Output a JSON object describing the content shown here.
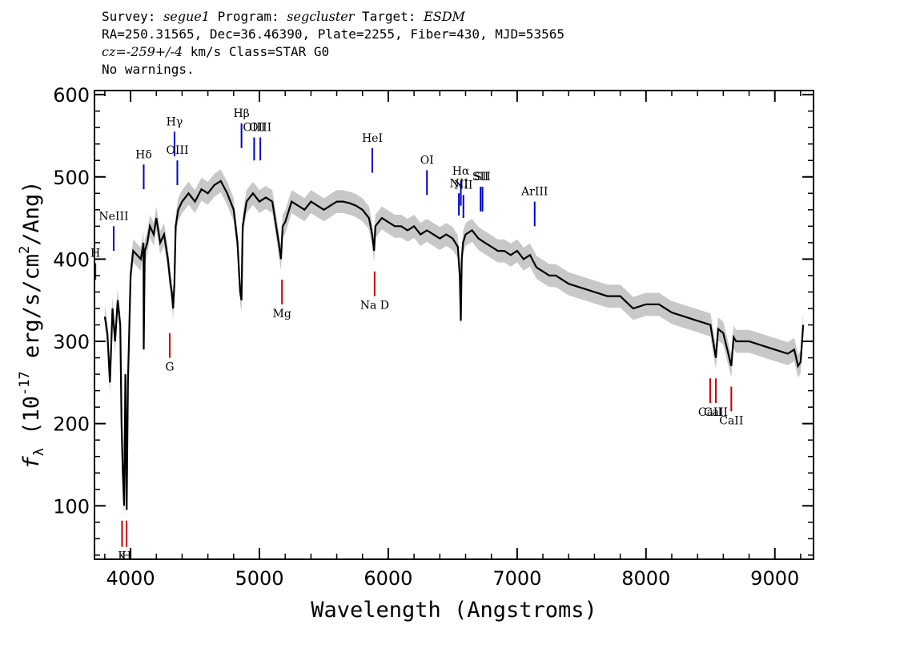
{
  "header": {
    "line1": {
      "survey_label": "Survey:",
      "survey": "segue1",
      "program_label": "Program:",
      "program": "segcluster",
      "target_label": "Target:",
      "target": "ESDM"
    },
    "line2": "RA=250.31565, Dec=36.46390, Plate=2255, Fiber=430, MJD=53565",
    "line3": {
      "cz_label": "cz=",
      "cz": "-259+/-4",
      "rest": " km/s Class=STAR G0"
    },
    "line4": "No warnings."
  },
  "chart_data": {
    "type": "line",
    "xlabel": "Wavelength (Angstroms)",
    "ylabel": "f_λ (10^-17 erg/s/cm^2/Ang)",
    "xlim": [
      3720,
      9300
    ],
    "ylim": [
      35,
      605
    ],
    "x_ticks": [
      4000,
      5000,
      6000,
      7000,
      8000,
      9000
    ],
    "y_ticks": [
      100,
      200,
      300,
      400,
      500,
      600
    ],
    "series": [
      {
        "style": "flux",
        "color": "#000000",
        "x": [
          3800,
          3820,
          3840,
          3860,
          3880,
          3900,
          3920,
          3930,
          3940,
          3950,
          3960,
          3970,
          3980,
          4000,
          4020,
          4050,
          4080,
          4100,
          4102,
          4110,
          4130,
          4150,
          4180,
          4200,
          4230,
          4260,
          4290,
          4310,
          4320,
          4330,
          4340,
          4350,
          4370,
          4400,
          4450,
          4500,
          4550,
          4600,
          4650,
          4700,
          4750,
          4800,
          4830,
          4850,
          4861,
          4870,
          4900,
          4950,
          5000,
          5050,
          5100,
          5150,
          5167,
          5180,
          5200,
          5250,
          5300,
          5350,
          5400,
          5450,
          5500,
          5550,
          5600,
          5650,
          5700,
          5750,
          5800,
          5850,
          5875,
          5890,
          5900,
          5950,
          6000,
          6050,
          6100,
          6150,
          6200,
          6250,
          6300,
          6350,
          6400,
          6450,
          6500,
          6540,
          6555,
          6563,
          6570,
          6580,
          6600,
          6650,
          6700,
          6750,
          6800,
          6850,
          6900,
          6950,
          7000,
          7050,
          7100,
          7150,
          7200,
          7250,
          7300,
          7350,
          7400,
          7500,
          7600,
          7700,
          7800,
          7900,
          8000,
          8100,
          8200,
          8300,
          8400,
          8500,
          8542,
          8560,
          8600,
          8662,
          8680,
          8700,
          8800,
          8900,
          9000,
          9100,
          9150,
          9180,
          9200,
          9220
        ],
        "y": [
          330,
          310,
          250,
          340,
          300,
          350,
          320,
          200,
          140,
          100,
          260,
          95,
          250,
          380,
          410,
          405,
          400,
          420,
          290,
          410,
          420,
          440,
          430,
          450,
          420,
          430,
          400,
          370,
          360,
          340,
          370,
          440,
          460,
          470,
          480,
          470,
          485,
          480,
          490,
          495,
          480,
          460,
          420,
          360,
          350,
          440,
          470,
          480,
          470,
          475,
          470,
          420,
          400,
          440,
          445,
          470,
          465,
          460,
          470,
          465,
          460,
          465,
          470,
          470,
          468,
          465,
          460,
          450,
          430,
          410,
          440,
          450,
          445,
          440,
          440,
          435,
          440,
          430,
          435,
          430,
          425,
          430,
          425,
          415,
          380,
          325,
          400,
          420,
          430,
          435,
          425,
          420,
          415,
          410,
          410,
          405,
          410,
          400,
          405,
          390,
          385,
          380,
          380,
          375,
          370,
          365,
          360,
          355,
          355,
          340,
          345,
          345,
          335,
          330,
          325,
          320,
          280,
          315,
          310,
          270,
          305,
          300,
          300,
          295,
          290,
          285,
          290,
          270,
          275,
          320
        ]
      },
      {
        "style": "error-envelope",
        "color": "#c8c8c8",
        "halfwidth": 14
      }
    ],
    "lines_emission": [
      {
        "label": "H",
        "wave": 3727,
        "y0": 375,
        "y1": 395
      },
      {
        "label": "NeIII",
        "wave": 3869,
        "y0": 410,
        "y1": 440
      },
      {
        "label": "Hδ",
        "wave": 4102,
        "y0": 485,
        "y1": 515
      },
      {
        "label": "Hγ",
        "wave": 4341,
        "y0": 525,
        "y1": 555
      },
      {
        "label": "OIII",
        "wave": 4363,
        "y0": 490,
        "y1": 520
      },
      {
        "label": "Hβ",
        "wave": 4861,
        "y0": 535,
        "y1": 565
      },
      {
        "label": "OIII",
        "wave": 4959,
        "y0": 520,
        "y1": 548
      },
      {
        "label": "OIII",
        "wave": 5007,
        "y0": 520,
        "y1": 548
      },
      {
        "label": "HeI",
        "wave": 5876,
        "y0": 505,
        "y1": 535
      },
      {
        "label": "OI",
        "wave": 6300,
        "y0": 478,
        "y1": 508
      },
      {
        "label": "NII",
        "wave": 6548,
        "y0": 453,
        "y1": 480
      },
      {
        "label": "Hα",
        "wave": 6563,
        "y0": 465,
        "y1": 495
      },
      {
        "label": "NII",
        "wave": 6583,
        "y0": 450,
        "y1": 478
      },
      {
        "label": "SII",
        "wave": 6716,
        "y0": 458,
        "y1": 488
      },
      {
        "label": "SII",
        "wave": 6731,
        "y0": 458,
        "y1": 488
      },
      {
        "label": "ArIII",
        "wave": 7136,
        "y0": 440,
        "y1": 470
      }
    ],
    "lines_absorption": [
      {
        "label": "K",
        "wave": 3934,
        "y0": 50,
        "y1": 82
      },
      {
        "label": "H",
        "wave": 3969,
        "y0": 50,
        "y1": 82
      },
      {
        "label": "G",
        "wave": 4304,
        "y0": 280,
        "y1": 310
      },
      {
        "label": "Mg",
        "wave": 5175,
        "y0": 345,
        "y1": 375
      },
      {
        "label": "Na D",
        "wave": 5894,
        "y0": 355,
        "y1": 385
      },
      {
        "label": "CaII",
        "wave": 8498,
        "y0": 225,
        "y1": 255
      },
      {
        "label": "CaII",
        "wave": 8542,
        "y0": 225,
        "y1": 255
      },
      {
        "label": "CaII",
        "wave": 8662,
        "y0": 215,
        "y1": 245
      }
    ],
    "line_colors": {
      "emission": "#0000cc",
      "absorption": "#cc0000"
    }
  }
}
